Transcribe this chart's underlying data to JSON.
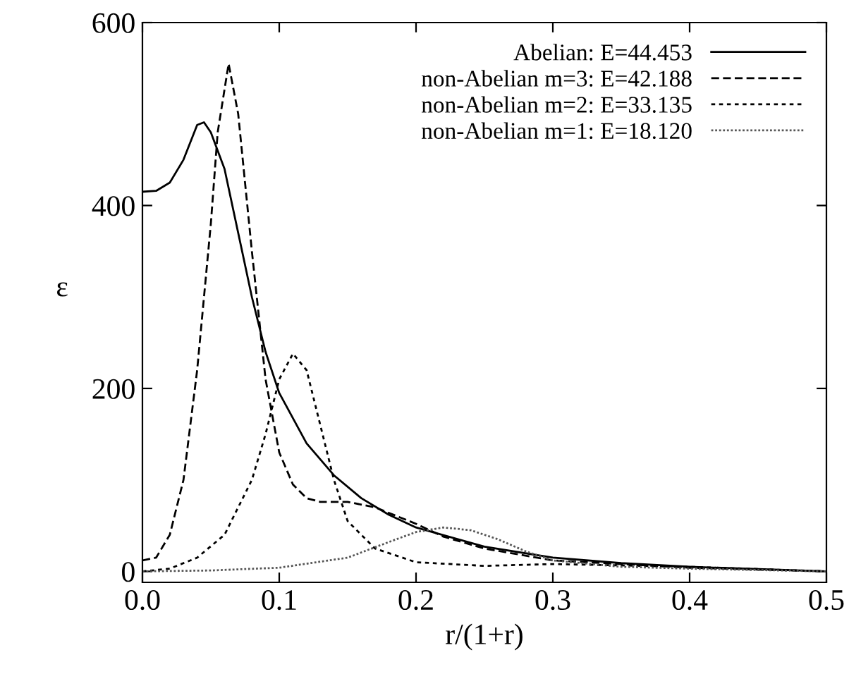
{
  "chart_data": {
    "type": "line",
    "xlabel": "r/(1+r)",
    "ylabel": "ε",
    "xlim": [
      0.0,
      0.5
    ],
    "ylim": [
      -12,
      600
    ],
    "xticks": [
      {
        "value": 0.0,
        "label": "0.0"
      },
      {
        "value": 0.1,
        "label": "0.1"
      },
      {
        "value": 0.2,
        "label": "0.2"
      },
      {
        "value": 0.3,
        "label": "0.3"
      },
      {
        "value": 0.4,
        "label": "0.4"
      },
      {
        "value": 0.5,
        "label": "0.5"
      }
    ],
    "yticks": [
      0,
      200,
      400,
      600
    ],
    "grid": false,
    "legend": "top right",
    "series": [
      {
        "name": "Abelian: E=44.453",
        "color": "#000000",
        "line_style": "solid",
        "x": [
          0,
          0.01,
          0.02,
          0.03,
          0.04,
          0.045,
          0.05,
          0.06,
          0.07,
          0.08,
          0.09,
          0.1,
          0.12,
          0.14,
          0.16,
          0.18,
          0.2,
          0.25,
          0.3,
          0.35,
          0.4,
          0.5
        ],
        "values": [
          415,
          416,
          425,
          450,
          488,
          491,
          480,
          440,
          370,
          300,
          240,
          195,
          140,
          105,
          80,
          62,
          48,
          27,
          15,
          9,
          5,
          0
        ]
      },
      {
        "name": "non-Abelian m=3: E=42.188",
        "color": "#000000",
        "line_style": "dashed",
        "x": [
          0,
          0.01,
          0.02,
          0.03,
          0.04,
          0.05,
          0.055,
          0.063,
          0.07,
          0.08,
          0.09,
          0.1,
          0.11,
          0.12,
          0.13,
          0.15,
          0.17,
          0.2,
          0.22,
          0.25,
          0.3,
          0.4,
          0.5
        ],
        "values": [
          12,
          15,
          40,
          100,
          220,
          380,
          480,
          555,
          500,
          350,
          210,
          130,
          95,
          80,
          76,
          76,
          70,
          52,
          38,
          25,
          12,
          4,
          0
        ]
      },
      {
        "name": "non-Abelian m=2: E=33.135",
        "color": "#000000",
        "line_style": "dotted",
        "x": [
          0,
          0.02,
          0.04,
          0.06,
          0.08,
          0.09,
          0.1,
          0.11,
          0.12,
          0.13,
          0.14,
          0.15,
          0.17,
          0.2,
          0.25,
          0.3,
          0.4,
          0.5
        ],
        "values": [
          0,
          3,
          15,
          40,
          100,
          150,
          210,
          238,
          220,
          160,
          100,
          55,
          25,
          10,
          6,
          8,
          5,
          0
        ]
      },
      {
        "name": "non-Abelian m=1: E=18.120",
        "color": "#555555",
        "line_style": "densedot",
        "x": [
          0,
          0.05,
          0.1,
          0.15,
          0.18,
          0.2,
          0.22,
          0.24,
          0.26,
          0.28,
          0.3,
          0.35,
          0.4,
          0.5
        ],
        "values": [
          0,
          1,
          4,
          15,
          32,
          43,
          48,
          45,
          35,
          22,
          12,
          5,
          3,
          0
        ]
      }
    ]
  }
}
